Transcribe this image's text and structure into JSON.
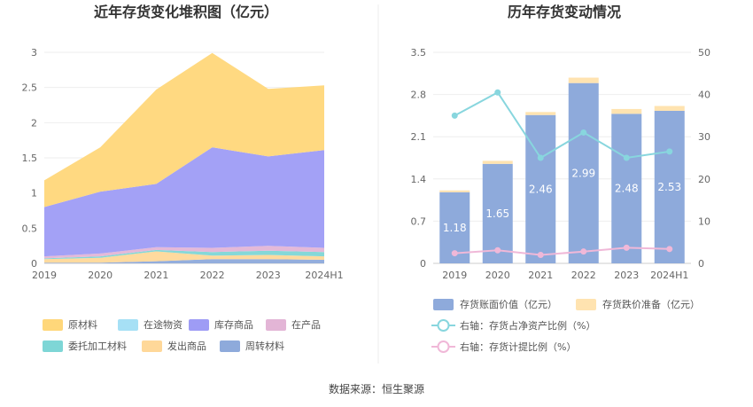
{
  "source_text": "数据来源：恒生聚源",
  "chart_data": [
    {
      "type": "area",
      "title": "近年存货变化堆积图（亿元）",
      "categories": [
        "2019",
        "2020",
        "2021",
        "2022",
        "2023",
        "2024H1"
      ],
      "ylim": [
        0,
        3
      ],
      "yticks": [
        "0",
        "0.5",
        "1",
        "1.5",
        "2",
        "2.5",
        "3"
      ],
      "stacked": true,
      "grid": true,
      "legend_position": "bottom",
      "series": [
        {
          "name": "周转材料",
          "color": "#8EAADB",
          "values": [
            0.01,
            0.01,
            0.03,
            0.06,
            0.06,
            0.05
          ]
        },
        {
          "name": "发出商品",
          "color": "#FFD899",
          "values": [
            0.05,
            0.07,
            0.14,
            0.05,
            0.06,
            0.05
          ]
        },
        {
          "name": "委托加工材料",
          "color": "#7ED6D6",
          "values": [
            0.01,
            0.02,
            0.02,
            0.05,
            0.06,
            0.06
          ]
        },
        {
          "name": "在产品",
          "color": "#E3B5D6",
          "values": [
            0.03,
            0.04,
            0.04,
            0.06,
            0.07,
            0.06
          ]
        },
        {
          "name": "库存商品",
          "color": "#9E9CF5",
          "values": [
            0.7,
            0.88,
            0.9,
            1.43,
            1.27,
            1.39
          ]
        },
        {
          "name": "在途物资",
          "color": "#A6E0F5",
          "values": [
            0,
            0,
            0,
            0,
            0,
            0
          ]
        },
        {
          "name": "原材料",
          "color": "#FFD77A",
          "values": [
            0.38,
            0.63,
            1.34,
            1.34,
            0.96,
            0.92
          ]
        }
      ],
      "legend_order": [
        "原材料",
        "在途物资",
        "库存商品",
        "在产品",
        "委托加工材料",
        "发出商品",
        "周转材料"
      ]
    },
    {
      "type": "bar",
      "title": "历年存货变动情况",
      "categories": [
        "2019",
        "2020",
        "2021",
        "2022",
        "2023",
        "2024H1"
      ],
      "ylim": [
        0,
        3.5
      ],
      "yticks": [
        "0",
        "0.7",
        "1.4",
        "2.1",
        "2.8",
        "3.5"
      ],
      "y2lim": [
        0,
        50
      ],
      "y2ticks": [
        "0",
        "10",
        "20",
        "30",
        "40",
        "50"
      ],
      "grid": true,
      "legend_position": "bottom",
      "series": [
        {
          "name": "存货账面价值（亿元）",
          "kind": "bar",
          "axis": "left",
          "color": "#8EAADB",
          "values": [
            1.18,
            1.65,
            2.46,
            2.99,
            2.48,
            2.53
          ],
          "data_labels": [
            "1.18",
            "1.65",
            "2.46",
            "2.99",
            "2.48",
            "2.53"
          ]
        },
        {
          "name": "存货跌价准备（亿元）",
          "kind": "bar",
          "axis": "left",
          "color": "#FFE3B0",
          "values": [
            0.03,
            0.05,
            0.05,
            0.09,
            0.08,
            0.08
          ]
        },
        {
          "name": "右轴：存货占净资产比例（%）",
          "kind": "line",
          "axis": "right",
          "color": "#88D6DE",
          "values": [
            35,
            40.5,
            25,
            31,
            25,
            26.5
          ]
        },
        {
          "name": "右轴：存货计提比例（%）",
          "kind": "line",
          "axis": "right",
          "color": "#F0B8D8",
          "values": [
            2.4,
            3.1,
            2.0,
            2.8,
            3.7,
            3.4
          ]
        }
      ]
    }
  ]
}
